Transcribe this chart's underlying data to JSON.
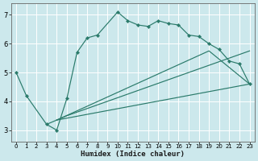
{
  "xlabel": "Humidex (Indice chaleur)",
  "bg_color": "#cce8ec",
  "grid_color": "#ffffff",
  "line_color": "#2a7a6a",
  "xlim": [
    -0.5,
    23.5
  ],
  "ylim": [
    2.6,
    7.4
  ],
  "yticks": [
    3,
    4,
    5,
    6,
    7
  ],
  "xticks": [
    0,
    1,
    2,
    3,
    4,
    5,
    6,
    7,
    8,
    9,
    10,
    11,
    12,
    13,
    14,
    15,
    16,
    17,
    18,
    19,
    20,
    21,
    22,
    23
  ],
  "line1_x": [
    0,
    1,
    3,
    4,
    5,
    6,
    7,
    8,
    10,
    11,
    12,
    13,
    14,
    15,
    16,
    17,
    18,
    19,
    20,
    21,
    22,
    23
  ],
  "line1_y": [
    5.0,
    4.2,
    3.2,
    3.0,
    4.1,
    5.7,
    6.2,
    6.3,
    7.1,
    6.8,
    6.65,
    6.6,
    6.8,
    6.7,
    6.65,
    6.3,
    6.25,
    6.0,
    5.8,
    5.4,
    5.3,
    4.6
  ],
  "line2_x": [
    4,
    23
  ],
  "line2_y": [
    3.35,
    4.6
  ],
  "line3_x": [
    4,
    19,
    23
  ],
  "line3_y": [
    3.35,
    5.75,
    4.6
  ],
  "line4_x": [
    3,
    4,
    5,
    23
  ],
  "line4_y": [
    3.2,
    3.35,
    3.5,
    5.75
  ]
}
